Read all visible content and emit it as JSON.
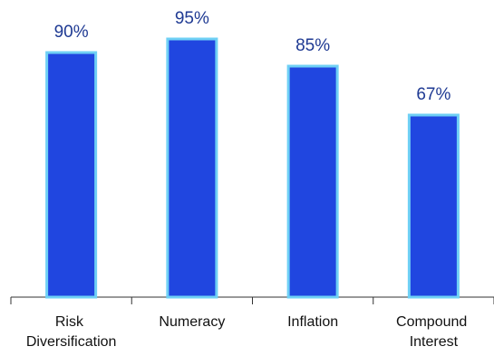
{
  "chart_data": {
    "type": "bar",
    "categories": [
      "Risk Diversification",
      "Numeracy",
      "Inflation",
      "Compound Interest"
    ],
    "values": [
      90,
      95,
      85,
      67
    ],
    "value_labels": [
      "90%",
      "95%",
      "85%",
      "67%"
    ],
    "color": "#2046e0",
    "edge_color": "#6fd0f5",
    "ylim": [
      0,
      100
    ]
  }
}
